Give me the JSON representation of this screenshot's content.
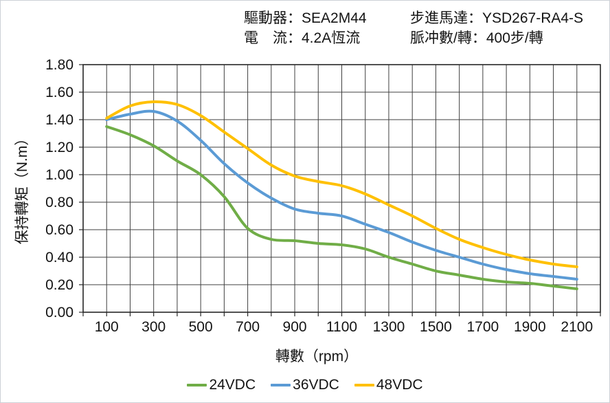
{
  "header": {
    "driver": "驅動器：SEA2M44",
    "current": "電　流：4.2A恆流",
    "motor": "步進馬達：YSD267-RA4-S",
    "pulses": "脈冲數/轉：400步/轉"
  },
  "chart_data": {
    "type": "line",
    "title": "",
    "xlabel": "轉數（rpm）",
    "ylabel": "保持轉矩（N.m）",
    "xlim": [
      0,
      2200
    ],
    "ylim": [
      0,
      1.8
    ],
    "grid": true,
    "x_grid_step": 100,
    "y_grid_step": 0.2,
    "x_tick_labels": [
      "100",
      "300",
      "500",
      "700",
      "900",
      "1100",
      "1300",
      "1500",
      "1700",
      "1900",
      "2100"
    ],
    "y_tick_labels": [
      "0.00",
      "0.20",
      "0.40",
      "0.60",
      "0.80",
      "1.00",
      "1.20",
      "1.40",
      "1.60",
      "1.80"
    ],
    "legend_position": "bottom-center",
    "grid_color": "#3f3f3f",
    "axis_color": "#262626",
    "x": [
      100,
      200,
      300,
      400,
      500,
      600,
      700,
      800,
      900,
      1000,
      1100,
      1200,
      1300,
      1400,
      1500,
      1600,
      1700,
      1800,
      1900,
      2000,
      2100
    ],
    "series": [
      {
        "name": "24VDC",
        "color": "#70AD47",
        "values": [
          1.35,
          1.29,
          1.21,
          1.1,
          1.0,
          0.84,
          0.61,
          0.53,
          0.52,
          0.5,
          0.49,
          0.46,
          0.4,
          0.35,
          0.3,
          0.27,
          0.24,
          0.22,
          0.21,
          0.19,
          0.17
        ]
      },
      {
        "name": "36VDC",
        "color": "#5B9BD5",
        "values": [
          1.4,
          1.44,
          1.46,
          1.39,
          1.25,
          1.08,
          0.94,
          0.83,
          0.75,
          0.72,
          0.7,
          0.64,
          0.58,
          0.51,
          0.45,
          0.4,
          0.35,
          0.31,
          0.28,
          0.26,
          0.24
        ]
      },
      {
        "name": "48VDC",
        "color": "#FFC000",
        "values": [
          1.41,
          1.5,
          1.53,
          1.51,
          1.43,
          1.31,
          1.19,
          1.07,
          0.99,
          0.95,
          0.92,
          0.86,
          0.78,
          0.7,
          0.61,
          0.53,
          0.47,
          0.42,
          0.38,
          0.35,
          0.33
        ]
      }
    ]
  }
}
